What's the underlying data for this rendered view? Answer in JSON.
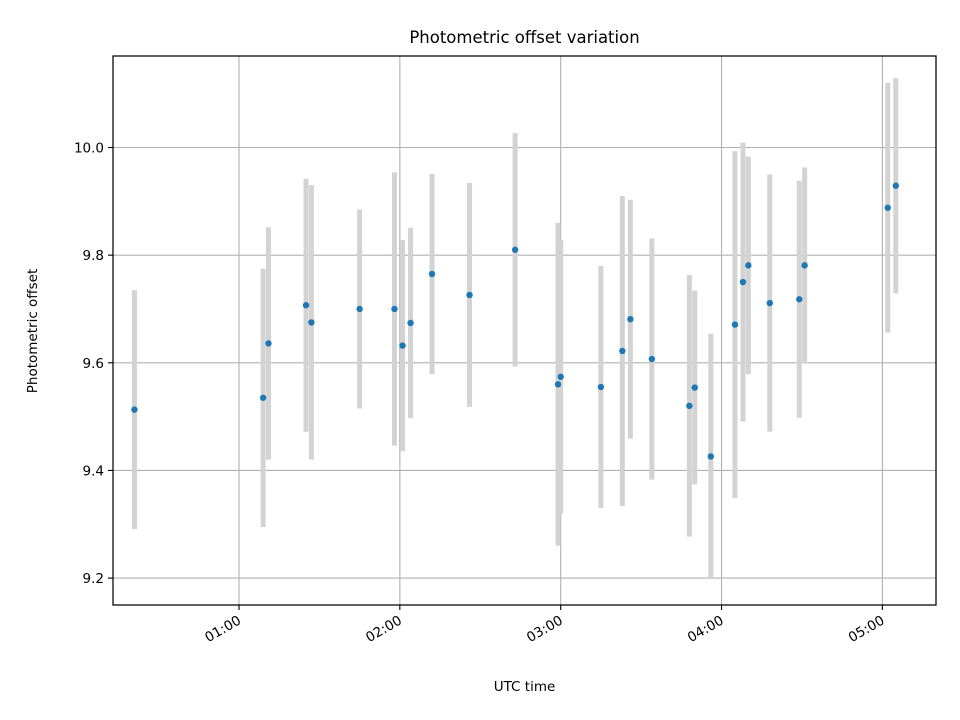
{
  "chart_data": {
    "type": "scatter",
    "title": "Photometric offset variation",
    "xlabel": "UTC time",
    "ylabel": "Photometric offset",
    "x_axis_type": "time",
    "xlim": [
      "00:13",
      "05:20"
    ],
    "ylim": [
      9.15,
      10.17
    ],
    "x_ticks": [
      "01:00",
      "02:00",
      "03:00",
      "04:00",
      "05:00"
    ],
    "y_ticks": [
      "9.2",
      "9.4",
      "9.6",
      "9.8",
      "10.0"
    ],
    "grid": true,
    "legend": "none",
    "series": [
      {
        "marker_color": "#1f77b4",
        "errorbar_color": "#d3d3d3",
        "points": [
          {
            "x": "00:21",
            "y": 9.513,
            "err": 0.222
          },
          {
            "x": "01:09",
            "y": 9.535,
            "err": 0.24
          },
          {
            "x": "01:11",
            "y": 9.636,
            "err": 0.216
          },
          {
            "x": "01:25",
            "y": 9.707,
            "err": 0.235
          },
          {
            "x": "01:27",
            "y": 9.675,
            "err": 0.255
          },
          {
            "x": "01:45",
            "y": 9.7,
            "err": 0.185
          },
          {
            "x": "01:58",
            "y": 9.7,
            "err": 0.254
          },
          {
            "x": "02:01",
            "y": 9.632,
            "err": 0.196
          },
          {
            "x": "02:04",
            "y": 9.674,
            "err": 0.177
          },
          {
            "x": "02:12",
            "y": 9.765,
            "err": 0.186
          },
          {
            "x": "02:26",
            "y": 9.726,
            "err": 0.208
          },
          {
            "x": "02:43",
            "y": 9.81,
            "err": 0.217
          },
          {
            "x": "02:59",
            "y": 9.56,
            "err": 0.3
          },
          {
            "x": "03:00",
            "y": 9.574,
            "err": 0.254
          },
          {
            "x": "03:15",
            "y": 9.555,
            "err": 0.225
          },
          {
            "x": "03:23",
            "y": 9.622,
            "err": 0.288
          },
          {
            "x": "03:26",
            "y": 9.681,
            "err": 0.222
          },
          {
            "x": "03:34",
            "y": 9.607,
            "err": 0.224
          },
          {
            "x": "03:48",
            "y": 9.52,
            "err": 0.243
          },
          {
            "x": "03:50",
            "y": 9.554,
            "err": 0.18
          },
          {
            "x": "03:56",
            "y": 9.426,
            "err": 0.228
          },
          {
            "x": "04:05",
            "y": 9.671,
            "err": 0.322
          },
          {
            "x": "04:08",
            "y": 9.75,
            "err": 0.259
          },
          {
            "x": "04:10",
            "y": 9.781,
            "err": 0.202
          },
          {
            "x": "04:18",
            "y": 9.711,
            "err": 0.239
          },
          {
            "x": "04:29",
            "y": 9.718,
            "err": 0.22
          },
          {
            "x": "04:31",
            "y": 9.781,
            "err": 0.182
          },
          {
            "x": "05:02",
            "y": 9.888,
            "err": 0.232
          },
          {
            "x": "05:05",
            "y": 9.929,
            "err": 0.2
          }
        ]
      }
    ]
  }
}
